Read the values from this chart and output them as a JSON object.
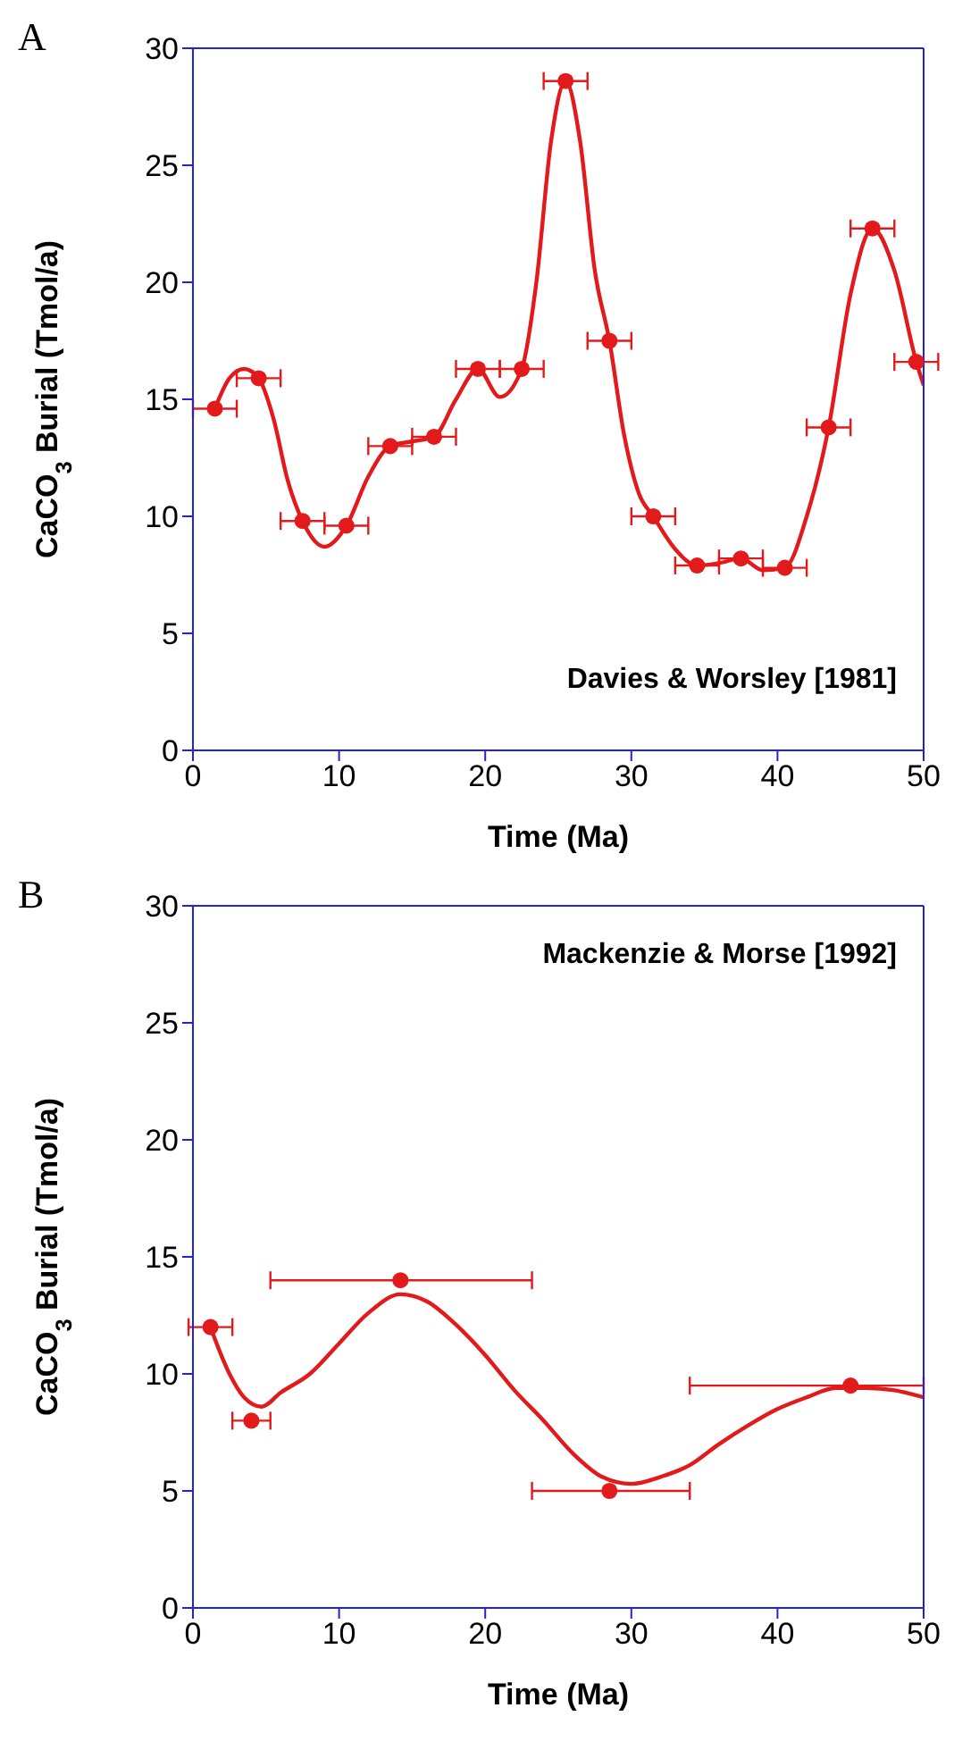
{
  "chart_data": [
    {
      "type": "scatter",
      "title": "A",
      "xlabel": "Time  (Ma)",
      "ylabel": "CaCO$_{3}$ Burial  (Tmol/a)",
      "annotations": [
        "Davies & Worsley [1981]"
      ],
      "xlim": [
        0,
        50
      ],
      "ylim": [
        0,
        30
      ],
      "xticks": [
        0,
        10,
        20,
        30,
        40,
        50
      ],
      "yticks": [
        0,
        5,
        10,
        15,
        20,
        25,
        30
      ],
      "series": [
        {
          "marker": "circle",
          "color": "#e31a1c",
          "x": [
            1.5,
            4.5,
            7.5,
            10.5,
            13.5,
            16.5,
            19.5,
            22.5,
            25.5,
            28.5,
            31.5,
            34.5,
            37.5,
            40.5,
            43.5,
            46.5,
            49.5
          ],
          "values": [
            14.6,
            15.9,
            9.8,
            9.6,
            13.0,
            13.4,
            16.3,
            16.3,
            28.6,
            17.5,
            10.0,
            7.9,
            8.2,
            7.8,
            13.8,
            22.3,
            16.6
          ],
          "xerrors": [
            1.5,
            1.5,
            1.5,
            1.5,
            1.5,
            1.5,
            1.5,
            1.5,
            1.5,
            1.5,
            1.5,
            1.5,
            1.5,
            1.5,
            1.5,
            1.5,
            1.5
          ]
        },
        {
          "type": "line",
          "marker": "none",
          "color": "#e31a1c",
          "x": [
            1.5,
            2.5,
            3.5,
            4.5,
            5.5,
            6.5,
            7.5,
            9,
            10.5,
            12,
            13.5,
            15,
            16.5,
            18,
            19.5,
            21,
            22.5,
            23.5,
            24.5,
            25.5,
            26.5,
            27.5,
            28.5,
            29.5,
            30.5,
            31.5,
            33,
            34.5,
            36,
            37.5,
            39,
            40.5,
            42,
            43.5,
            45,
            46.5,
            48,
            49.5,
            50
          ],
          "values": [
            14.6,
            15.9,
            16.3,
            15.9,
            14.2,
            11.5,
            9.8,
            8.7,
            9.6,
            11.7,
            13.0,
            13.2,
            13.4,
            15.0,
            16.3,
            15.1,
            16.3,
            20,
            26,
            28.6,
            26,
            20.5,
            17.5,
            13.5,
            11,
            10.0,
            8.6,
            7.9,
            8.0,
            8.2,
            7.7,
            7.8,
            10,
            13.8,
            19.5,
            22.3,
            20.5,
            16.6,
            15.6
          ]
        }
      ]
    },
    {
      "type": "scatter",
      "title": "B",
      "xlabel": "Time  (Ma)",
      "ylabel": "CaCO$_{3}$ Burial  (Tmol/a)",
      "annotations": [
        "Mackenzie & Morse [1992]"
      ],
      "xlim": [
        0,
        50
      ],
      "ylim": [
        0,
        30
      ],
      "xticks": [
        0,
        10,
        20,
        30,
        40,
        50
      ],
      "yticks": [
        0,
        5,
        10,
        15,
        20,
        25,
        30
      ],
      "series": [
        {
          "marker": "circle",
          "color": "#e31a1c",
          "x": [
            1.2,
            4,
            14.2,
            28.5,
            45
          ],
          "values": [
            12,
            8,
            14,
            5,
            9.5
          ],
          "xerrors": [
            1.5,
            1.3,
            [
              5.3,
              23.2
            ],
            [
              23.2,
              34
            ],
            [
              34,
              50
            ]
          ]
        },
        {
          "type": "line",
          "marker": "none",
          "color": "#e31a1c",
          "x": [
            1.2,
            2.5,
            3.5,
            4.7,
            6,
            8,
            10,
            12,
            14.2,
            16,
            18,
            20,
            22,
            24,
            26,
            28,
            30,
            32,
            34,
            36,
            38,
            40,
            42,
            44,
            46,
            48,
            50
          ],
          "values": [
            12,
            10,
            9,
            8.6,
            9.2,
            10,
            11.3,
            12.6,
            13.4,
            13.1,
            12.1,
            10.8,
            9.3,
            8,
            6.6,
            5.6,
            5.3,
            5.6,
            6.1,
            7,
            7.8,
            8.5,
            9,
            9.4,
            9.4,
            9.3,
            9.0
          ]
        }
      ]
    }
  ]
}
